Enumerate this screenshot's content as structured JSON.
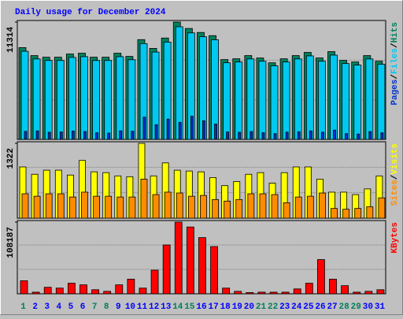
{
  "title": "Daily usage for December 2024",
  "chart_data": [
    {
      "type": "bar",
      "ylim": [
        0,
        11314
      ],
      "yticks": [
        11314
      ],
      "legend_separator": "/",
      "series": [
        {
          "name": "Hits",
          "color": "#00805c",
          "values": [
            8851,
            8082,
            7927,
            7927,
            8235,
            8312,
            7927,
            7927,
            8312,
            8004,
            9621,
            8774,
            9775,
            11314,
            10698,
            10313,
            10005,
            7697,
            7774,
            8082,
            7851,
            7389,
            7774,
            8082,
            8389,
            7851,
            8466,
            7620,
            7466,
            8082,
            7543
          ]
        },
        {
          "name": "Files",
          "color": "#00c8f0",
          "values": [
            8497,
            7759,
            7610,
            7610,
            7906,
            7980,
            7610,
            7610,
            7980,
            7684,
            9236,
            8423,
            9384,
            10861,
            10270,
            9900,
            9605,
            7389,
            7463,
            7759,
            7537,
            7093,
            7463,
            7759,
            8053,
            7537,
            8127,
            7315,
            7167,
            7759,
            7241
          ]
        },
        {
          "name": "Pages",
          "color": "#0030d0",
          "values": [
            780,
            820,
            690,
            720,
            810,
            760,
            640,
            610,
            830,
            790,
            2150,
            1420,
            1960,
            1650,
            2240,
            1800,
            1480,
            720,
            690,
            760,
            640,
            560,
            700,
            740,
            820,
            700,
            900,
            560,
            520,
            760,
            640
          ]
        }
      ]
    },
    {
      "type": "bar",
      "ylim": [
        0,
        1322
      ],
      "yticks": [
        1322
      ],
      "legend_separator": "/",
      "series": [
        {
          "name": "Visits",
          "color": "#ffff00",
          "values": [
            905,
            776,
            848,
            848,
            762,
            1020,
            819,
            805,
            747,
            733,
            1322,
            747,
            977,
            848,
            833,
            819,
            718,
            575,
            647,
            776,
            805,
            618,
            805,
            905,
            905,
            690,
            460,
            460,
            417,
            517,
            747
          ]
        },
        {
          "name": "Sites",
          "color": "#ff8c00",
          "values": [
            431,
            388,
            431,
            431,
            374,
            460,
            388,
            388,
            374,
            374,
            690,
            417,
            460,
            445,
            388,
            402,
            330,
            302,
            330,
            431,
            431,
            417,
            273,
            374,
            388,
            445,
            172,
            158,
            172,
            201,
            359
          ]
        }
      ]
    },
    {
      "type": "bar",
      "ylim": [
        0,
        108187
      ],
      "yticks": [
        108187
      ],
      "categories": [
        "1",
        "2",
        "3",
        "4",
        "5",
        "6",
        "7",
        "8",
        "9",
        "10",
        "11",
        "12",
        "13",
        "14",
        "15",
        "16",
        "17",
        "18",
        "19",
        "20",
        "21",
        "22",
        "23",
        "24",
        "25",
        "26",
        "27",
        "28",
        "29",
        "30",
        "31"
      ],
      "category_colors": [
        "#00805c",
        "#0000ff",
        "#0000ff",
        "#0000ff",
        "#0000ff",
        "#0000ff",
        "#00805c",
        "#00805c",
        "#0000ff",
        "#0000ff",
        "#0000ff",
        "#0000ff",
        "#0000ff",
        "#00805c",
        "#00805c",
        "#0000ff",
        "#0000ff",
        "#0000ff",
        "#0000ff",
        "#0000ff",
        "#00805c",
        "#00805c",
        "#0000ff",
        "#0000ff",
        "#0000ff",
        "#0000ff",
        "#0000ff",
        "#00805c",
        "#00805c",
        "#0000ff",
        "#0000ff"
      ],
      "series": [
        {
          "name": "KBytes",
          "color": "#ff0000",
          "values": [
            19670,
            2459,
            9835,
            8606,
            15982,
            13523,
            6147,
            3688,
            13523,
            22129,
            8606,
            35653,
            73764,
            108187,
            100811,
            84829,
            71306,
            8606,
            3688,
            1844,
            2459,
            2459,
            2459,
            7376,
            15982,
            51635,
            22129,
            12294,
            2459,
            3688,
            6147
          ]
        }
      ]
    }
  ]
}
